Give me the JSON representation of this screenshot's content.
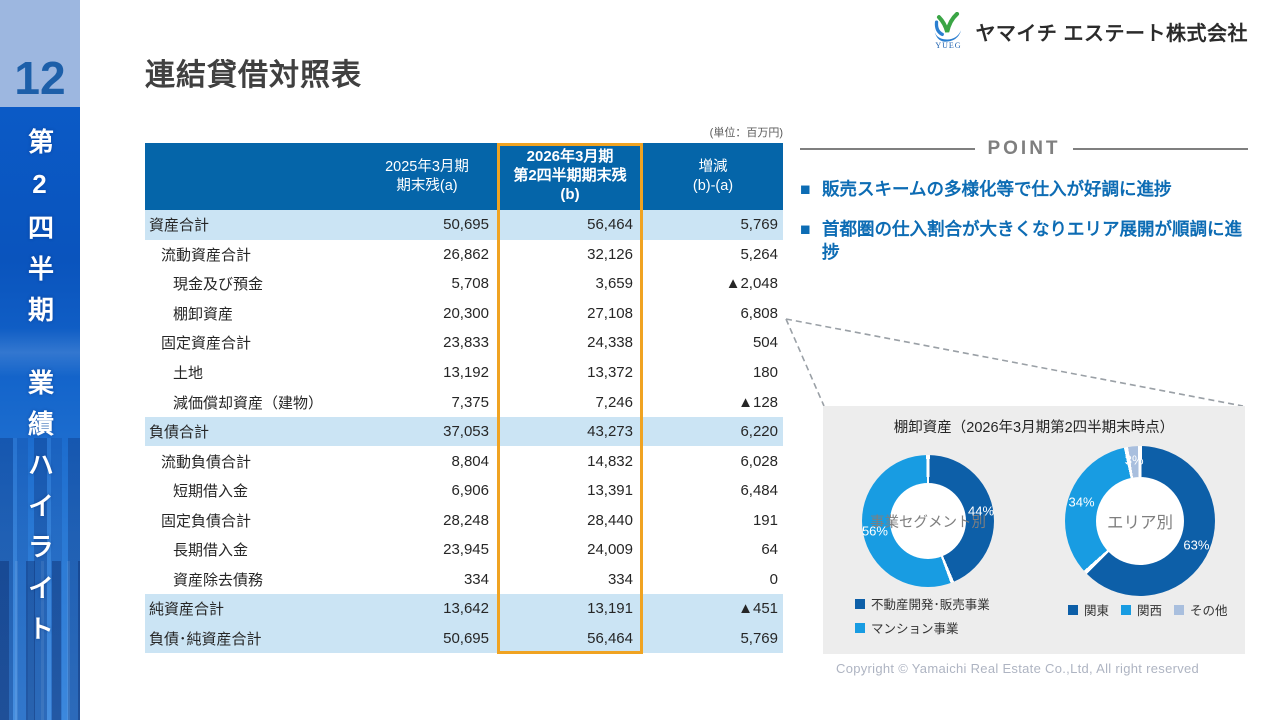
{
  "page": {
    "number": "12",
    "sidebar_top": "第2四半期",
    "sidebar_bottom": "業績ハイライト"
  },
  "header": {
    "title": "連結貸借対照表",
    "logo_text": "ヤマイチ エステート株式会社",
    "logo_sub": "YUEG"
  },
  "table": {
    "unit_note": "(単位：百万円)",
    "col_label_a": "2025年3月期\n期末残(a)",
    "col_label_b": "2026年3月期\n第2四半期期末残\n(b)",
    "col_label_diff": "増減\n(b)-(a)",
    "rows": [
      {
        "label": "資産合計",
        "a": "50,695",
        "b": "56,464",
        "diff": "5,769",
        "indent": 0,
        "highlight": true
      },
      {
        "label": "流動資産合計",
        "a": "26,862",
        "b": "32,126",
        "diff": "5,264",
        "indent": 1,
        "highlight": false
      },
      {
        "label": "現金及び預金",
        "a": "5,708",
        "b": "3,659",
        "diff": "▲2,048",
        "indent": 2,
        "highlight": false
      },
      {
        "label": "棚卸資産",
        "a": "20,300",
        "b": "27,108",
        "diff": "6,808",
        "indent": 2,
        "highlight": false
      },
      {
        "label": "固定資産合計",
        "a": "23,833",
        "b": "24,338",
        "diff": "504",
        "indent": 1,
        "highlight": false
      },
      {
        "label": "土地",
        "a": "13,192",
        "b": "13,372",
        "diff": "180",
        "indent": 2,
        "highlight": false
      },
      {
        "label": "減価償却資産（建物）",
        "a": "7,375",
        "b": "7,246",
        "diff": "▲128",
        "indent": 2,
        "highlight": false
      },
      {
        "label": "負債合計",
        "a": "37,053",
        "b": "43,273",
        "diff": "6,220",
        "indent": 0,
        "highlight": true
      },
      {
        "label": "流動負債合計",
        "a": "8,804",
        "b": "14,832",
        "diff": "6,028",
        "indent": 1,
        "highlight": false
      },
      {
        "label": "短期借入金",
        "a": "6,906",
        "b": "13,391",
        "diff": "6,484",
        "indent": 2,
        "highlight": false
      },
      {
        "label": "固定負債合計",
        "a": "28,248",
        "b": "28,440",
        "diff": "191",
        "indent": 1,
        "highlight": false
      },
      {
        "label": "長期借入金",
        "a": "23,945",
        "b": "24,009",
        "diff": "64",
        "indent": 2,
        "highlight": false
      },
      {
        "label": "資産除去債務",
        "a": "334",
        "b": "334",
        "diff": "0",
        "indent": 2,
        "highlight": false
      },
      {
        "label": "純資産合計",
        "a": "13,642",
        "b": "13,191",
        "diff": "▲451",
        "indent": 0,
        "highlight": true
      },
      {
        "label": "負債･純資産合計",
        "a": "50,695",
        "b": "56,464",
        "diff": "5,769",
        "indent": 0,
        "highlight": true
      }
    ]
  },
  "point": {
    "title": "POINT",
    "marker": "■",
    "bullets": [
      "販売スキームの多様化等で仕入が好調に進捗",
      "首都圏の仕入割合が大きくなりエリア展開が順調に進捗"
    ]
  },
  "chart_data": [
    {
      "type": "pie",
      "subtype": "donut",
      "title": "棚卸資産（2026年3月期第2四半期末時点）",
      "center_label": "事業セグメント別",
      "labels": [
        "不動産開発･販売事業",
        "マンション事業"
      ],
      "values": [
        44,
        56
      ],
      "unit": "%",
      "colors": [
        "#0d5fa8",
        "#189ce2"
      ],
      "legend_position": "bottom-left-stacked"
    },
    {
      "type": "pie",
      "subtype": "donut",
      "title": "棚卸資産（2026年3月期第2四半期末時点）",
      "center_label": "エリア別",
      "labels": [
        "関東",
        "関西",
        "その他"
      ],
      "values": [
        63,
        34,
        3
      ],
      "unit": "%",
      "colors": [
        "#0d5fa8",
        "#189ce2",
        "#a9bfde"
      ],
      "legend_position": "bottom-row"
    }
  ],
  "footer": {
    "copyright": "Copyright © Yamaichi Real Estate Co.,Ltd, All right reserved"
  },
  "colors": {
    "header_blue": "#0565a9",
    "row_highlight_blue": "#cbe4f4",
    "accent_orange": "#f0a322",
    "point_blue": "#0d6cb4",
    "sidebar_block_blue": "#9db7e0",
    "page_number_blue": "#1d5fa9",
    "donut_dark_blue": "#0d5fa8",
    "donut_light_blue": "#189ce2",
    "donut_pale_blue": "#a9bfde"
  }
}
